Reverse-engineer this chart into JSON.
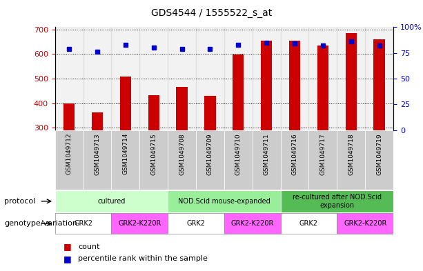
{
  "title": "GDS4544 / 1555522_s_at",
  "samples": [
    "GSM1049712",
    "GSM1049713",
    "GSM1049714",
    "GSM1049715",
    "GSM1049708",
    "GSM1049709",
    "GSM1049710",
    "GSM1049711",
    "GSM1049716",
    "GSM1049717",
    "GSM1049718",
    "GSM1049719"
  ],
  "counts": [
    400,
    362,
    507,
    432,
    465,
    430,
    597,
    655,
    655,
    635,
    686,
    660
  ],
  "percentiles": [
    79,
    76,
    83,
    80,
    79,
    79,
    83,
    85,
    84,
    82,
    86,
    82
  ],
  "ylim_left": [
    290,
    710
  ],
  "ylim_right": [
    0,
    100
  ],
  "yticks_left": [
    300,
    400,
    500,
    600,
    700
  ],
  "yticks_right": [
    0,
    25,
    50,
    75,
    100
  ],
  "bar_color": "#cc0000",
  "dot_color": "#0000cc",
  "protocol_groups": [
    {
      "label": "cultured",
      "start": 0,
      "end": 3,
      "color": "#ccffcc"
    },
    {
      "label": "NOD.Scid mouse-expanded",
      "start": 4,
      "end": 7,
      "color": "#99ee99"
    },
    {
      "label": "re-cultured after NOD.Scid\nexpansion",
      "start": 8,
      "end": 11,
      "color": "#55bb55"
    }
  ],
  "genotype_groups": [
    {
      "label": "GRK2",
      "start": 0,
      "end": 1,
      "color": "#ffffff"
    },
    {
      "label": "GRK2-K220R",
      "start": 2,
      "end": 3,
      "color": "#ff66ff"
    },
    {
      "label": "GRK2",
      "start": 4,
      "end": 5,
      "color": "#ffffff"
    },
    {
      "label": "GRK2-K220R",
      "start": 6,
      "end": 7,
      "color": "#ff66ff"
    },
    {
      "label": "GRK2",
      "start": 8,
      "end": 9,
      "color": "#ffffff"
    },
    {
      "label": "GRK2-K220R",
      "start": 10,
      "end": 11,
      "color": "#ff66ff"
    }
  ],
  "legend_count_label": "count",
  "legend_pct_label": "percentile rank within the sample",
  "protocol_label": "protocol",
  "genotype_label": "genotype/variation",
  "xticklabel_bg": "#cccccc"
}
